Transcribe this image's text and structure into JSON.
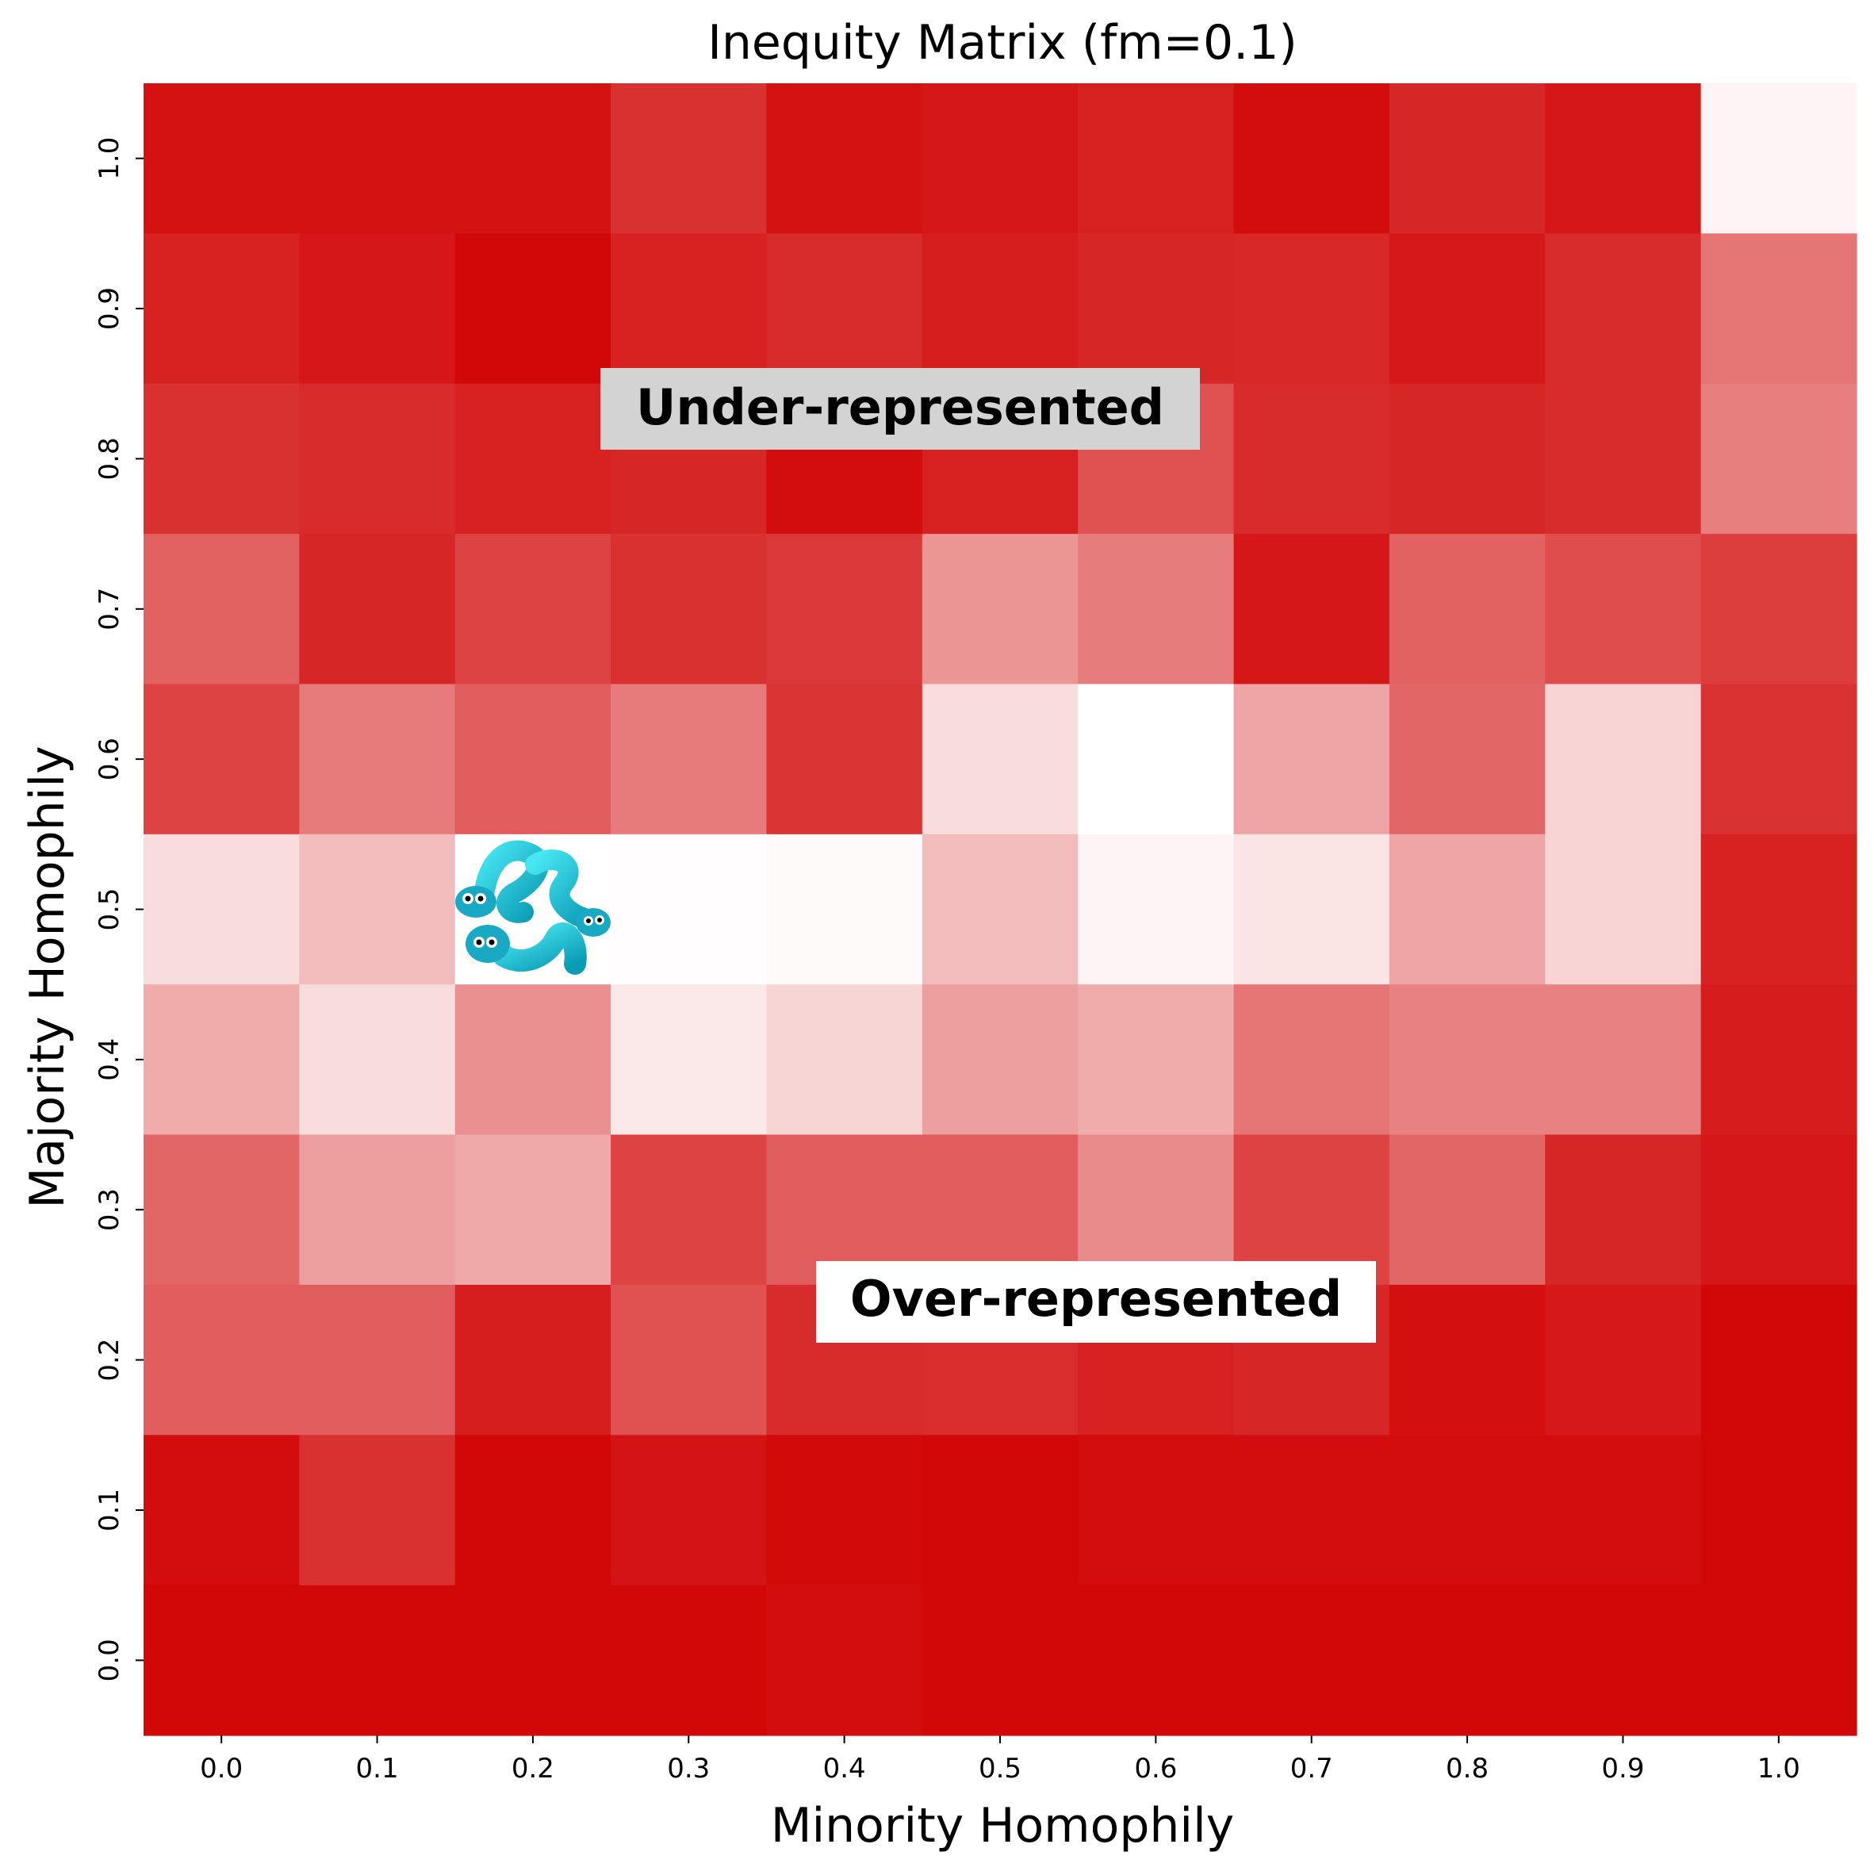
{
  "chart_data": {
    "type": "heatmap",
    "title": "Inequity Matrix (fm=0.1)",
    "xlabel": "Minority Homophily",
    "ylabel": "Majority Homophily",
    "x_ticks": [
      "0.0",
      "0.1",
      "0.2",
      "0.3",
      "0.4",
      "0.5",
      "0.6",
      "0.7",
      "0.8",
      "0.9",
      "1.0"
    ],
    "y_ticks": [
      "1.0",
      "0.9",
      "0.8",
      "0.7",
      "0.6",
      "0.5",
      "0.4",
      "0.3",
      "0.2",
      "0.1",
      "0.0"
    ],
    "colormap": {
      "low": "#ffffff",
      "high": "#d20808"
    },
    "grid": false,
    "legend": "none",
    "values_description": "relative color intensity per cell (0 = white, 1 = deep red); rows listed top (Majority 1.0) to bottom (Majority 0.0), columns Minority 0.0 to 1.0",
    "values": [
      [
        0.96,
        0.96,
        0.96,
        0.84,
        0.96,
        0.94,
        0.9,
        0.98,
        0.88,
        0.94,
        0.04
      ],
      [
        0.9,
        0.94,
        1.0,
        0.9,
        0.86,
        0.91,
        0.88,
        0.87,
        0.93,
        0.86,
        0.56
      ],
      [
        0.84,
        0.86,
        0.9,
        0.88,
        0.98,
        0.9,
        0.7,
        0.86,
        0.88,
        0.86,
        0.52
      ],
      [
        0.64,
        0.88,
        0.76,
        0.84,
        0.8,
        0.43,
        0.53,
        0.94,
        0.64,
        0.72,
        0.78
      ],
      [
        0.76,
        0.54,
        0.66,
        0.54,
        0.82,
        0.14,
        0.0,
        0.37,
        0.62,
        0.18,
        0.83
      ],
      [
        0.14,
        0.27,
        0.0,
        0.01,
        0.02,
        0.27,
        0.04,
        0.11,
        0.37,
        0.18,
        0.9
      ],
      [
        0.34,
        0.14,
        0.45,
        0.09,
        0.17,
        0.39,
        0.34,
        0.56,
        0.51,
        0.51,
        0.92
      ],
      [
        0.62,
        0.39,
        0.35,
        0.76,
        0.66,
        0.66,
        0.47,
        0.76,
        0.62,
        0.88,
        0.94
      ],
      [
        0.65,
        0.66,
        0.91,
        0.7,
        0.86,
        0.85,
        0.9,
        0.88,
        0.97,
        0.93,
        1.0
      ],
      [
        0.98,
        0.84,
        1.0,
        0.95,
        0.99,
        1.0,
        0.98,
        0.98,
        0.98,
        0.98,
        1.0
      ],
      [
        1.0,
        1.0,
        1.0,
        1.0,
        0.98,
        1.0,
        1.0,
        1.0,
        1.0,
        1.0,
        1.0
      ]
    ],
    "annotations": [
      {
        "text": "Under-represented",
        "box_color": "#d3d3d3"
      },
      {
        "text": "Over-represented",
        "box_color": "#ffffff"
      }
    ],
    "decoration_icon": "cyan-worms-icon"
  }
}
